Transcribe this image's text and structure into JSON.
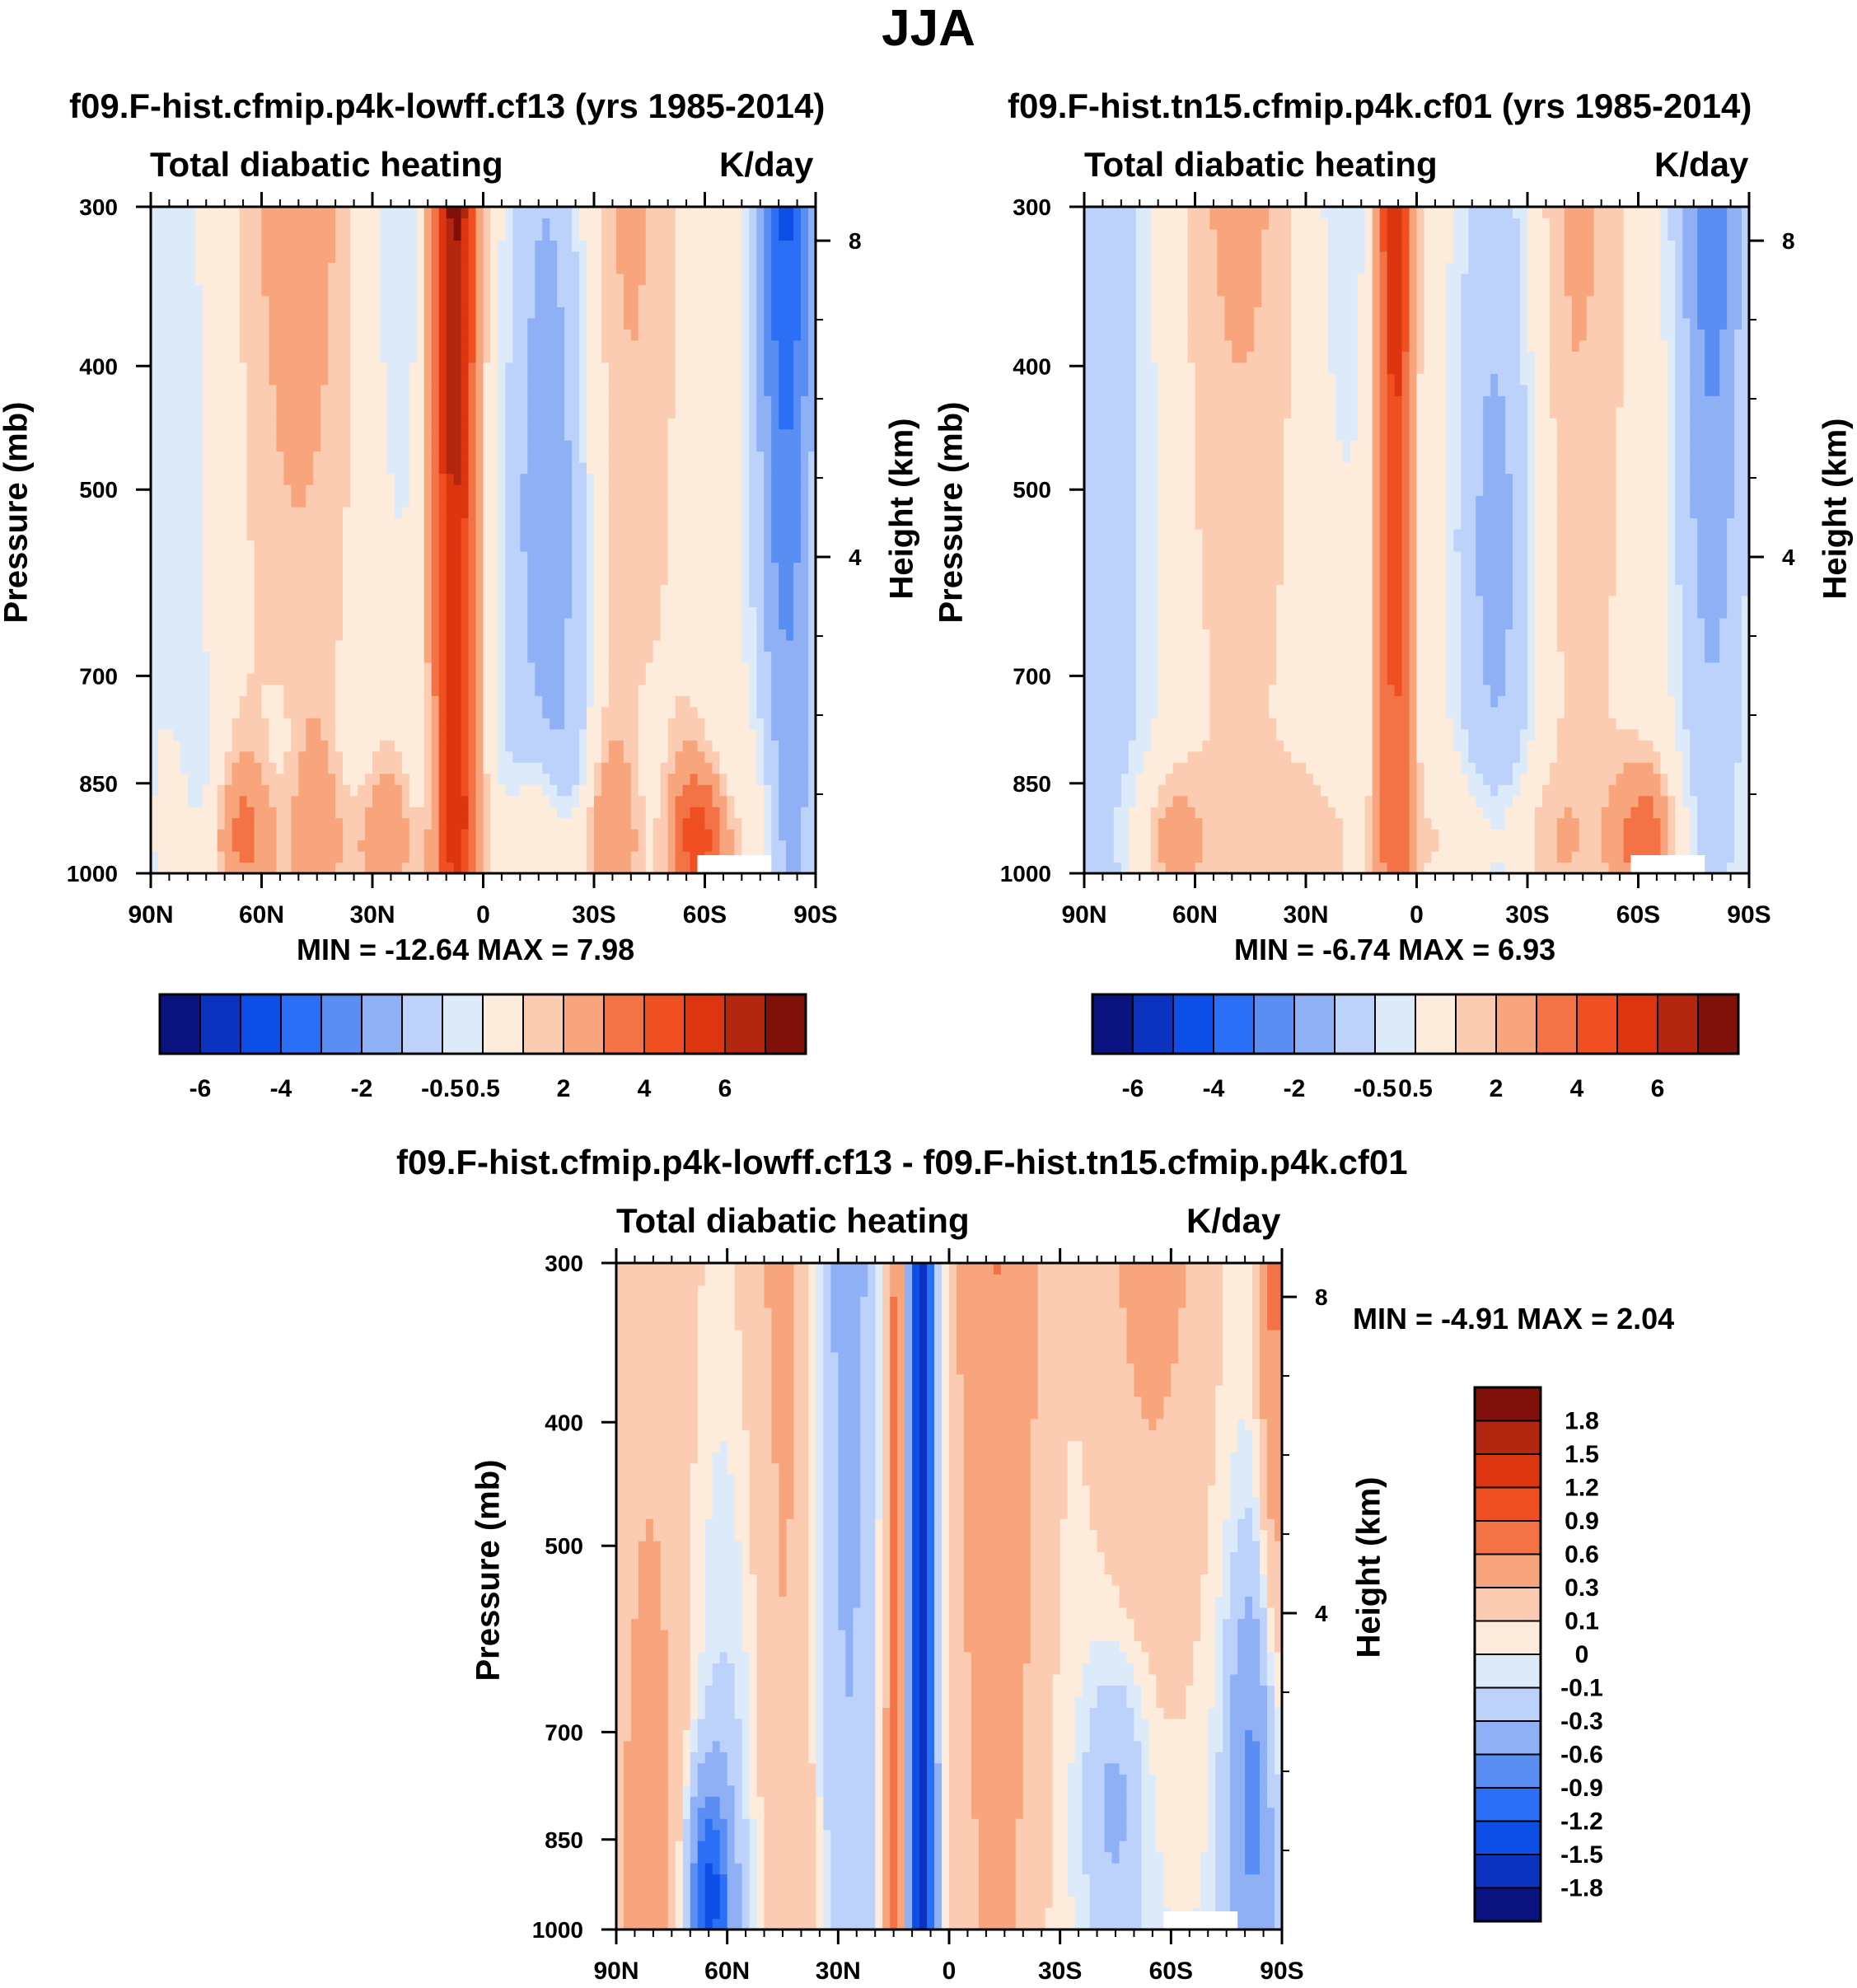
{
  "figure": {
    "title": "JJA"
  },
  "colors": {
    "palette_14": [
      "#0a1380",
      "#0b33bf",
      "#0d4ee6",
      "#2a6ff5",
      "#5a8ef2",
      "#8fb0f5",
      "#bcd2fa",
      "#ddeaf9",
      "#fdecdc",
      "#fcccb2",
      "#f8a47c",
      "#f47346",
      "#f04f22",
      "#dd3510",
      "#b32610",
      "#80100a"
    ],
    "palette_diff": [
      "#0a1380",
      "#0b33bf",
      "#0d4ee6",
      "#2a6ff5",
      "#5a8ef2",
      "#8fb0f5",
      "#bcd2fa",
      "#ddeaf9",
      "#fdecdc",
      "#fcccb2",
      "#f8a47c",
      "#f47346",
      "#f04f22",
      "#dd3510",
      "#b32610",
      "#80100a"
    ]
  },
  "panels": [
    {
      "title": "f09.F-hist.cfmip.p4k-lowff.cf13 (yrs 1985-2014)",
      "left_label": "Total diabatic heating",
      "right_label": "K/day",
      "ylabel": "Pressure (mb)",
      "y2label": "Height (km)",
      "stats": "MIN = -12.64  MAX =   7.98"
    },
    {
      "title": "f09.F-hist.tn15.cfmip.p4k.cf01 (yrs 1985-2014)",
      "left_label": "Total diabatic heating",
      "right_label": "K/day",
      "ylabel": "Pressure (mb)",
      "y2label": "Height (km)",
      "stats": "MIN =  -6.74  MAX =   6.93"
    },
    {
      "title": "f09.F-hist.cfmip.p4k-lowff.cf13 - f09.F-hist.tn15.cfmip.p4k.cf01",
      "left_label": "Total diabatic heating",
      "right_label": "K/day",
      "ylabel": "Pressure (mb)",
      "y2label": "Height (km)",
      "stats": "MIN =  -4.91  MAX =   2.04"
    }
  ],
  "chart_data": [
    {
      "type": "heatmap",
      "title": "f09.F-hist.cfmip.p4k-lowff.cf13 (yrs 1985-2014)",
      "xlabel": "",
      "ylabel": "Pressure (mb)",
      "x_tick_labels": [
        "90N",
        "60N",
        "30N",
        "0",
        "30S",
        "60S",
        "90S"
      ],
      "x_ticks": [
        90,
        60,
        30,
        0,
        -30,
        -60,
        -90
      ],
      "y_tick_labels": [
        "300",
        "400",
        "500",
        "700",
        "850",
        "1000"
      ],
      "y_ticks": [
        300,
        400,
        500,
        700,
        850,
        1000
      ],
      "y_scale": "log",
      "ylim": [
        1000,
        300
      ],
      "y2_tick_labels": [
        "8",
        "4"
      ],
      "y2_ticks_km": [
        8,
        4
      ],
      "colorbar_labels": [
        "-6",
        "-4",
        "-2",
        "-0.5",
        "0.5",
        "2",
        "4",
        "6"
      ],
      "colorbar_levels": [
        -7,
        -6,
        -5,
        -4,
        -3,
        -2,
        -1,
        -0.5,
        0.5,
        1,
        2,
        3,
        4,
        5,
        6,
        7
      ],
      "units": "K/day",
      "min": -12.64,
      "max": 7.98
    },
    {
      "type": "heatmap",
      "title": "f09.F-hist.tn15.cfmip.p4k.cf01 (yrs 1985-2014)",
      "xlabel": "",
      "ylabel": "Pressure (mb)",
      "x_tick_labels": [
        "90N",
        "60N",
        "30N",
        "0",
        "30S",
        "60S",
        "90S"
      ],
      "x_ticks": [
        90,
        60,
        30,
        0,
        -30,
        -60,
        -90
      ],
      "y_tick_labels": [
        "300",
        "400",
        "500",
        "700",
        "850",
        "1000"
      ],
      "y_ticks": [
        300,
        400,
        500,
        700,
        850,
        1000
      ],
      "y_scale": "log",
      "ylim": [
        1000,
        300
      ],
      "y2_tick_labels": [
        "8",
        "4"
      ],
      "y2_ticks_km": [
        8,
        4
      ],
      "colorbar_labels": [
        "-6",
        "-4",
        "-2",
        "-0.5",
        "0.5",
        "2",
        "4",
        "6"
      ],
      "colorbar_levels": [
        -7,
        -6,
        -5,
        -4,
        -3,
        -2,
        -1,
        -0.5,
        0.5,
        1,
        2,
        3,
        4,
        5,
        6,
        7
      ],
      "units": "K/day",
      "min": -6.74,
      "max": 6.93
    },
    {
      "type": "heatmap",
      "title": "f09.F-hist.cfmip.p4k-lowff.cf13 - f09.F-hist.tn15.cfmip.p4k.cf01",
      "xlabel": "",
      "ylabel": "Pressure (mb)",
      "x_tick_labels": [
        "90N",
        "60N",
        "30N",
        "0",
        "30S",
        "60S",
        "90S"
      ],
      "x_ticks": [
        90,
        60,
        30,
        0,
        -30,
        -60,
        -90
      ],
      "y_tick_labels": [
        "300",
        "400",
        "500",
        "700",
        "850",
        "1000"
      ],
      "y_ticks": [
        300,
        400,
        500,
        700,
        850,
        1000
      ],
      "y_scale": "log",
      "ylim": [
        1000,
        300
      ],
      "y2_tick_labels": [
        "8",
        "4"
      ],
      "y2_ticks_km": [
        8,
        4
      ],
      "colorbar_labels": [
        "1.8",
        "1.5",
        "1.2",
        "0.9",
        "0.6",
        "0.3",
        "0.1",
        "0",
        "-0.1",
        "-0.3",
        "-0.6",
        "-0.9",
        "-1.2",
        "-1.5",
        "-1.8"
      ],
      "colorbar_orientation": "vertical",
      "units": "K/day",
      "min": -4.91,
      "max": 2.04
    }
  ]
}
